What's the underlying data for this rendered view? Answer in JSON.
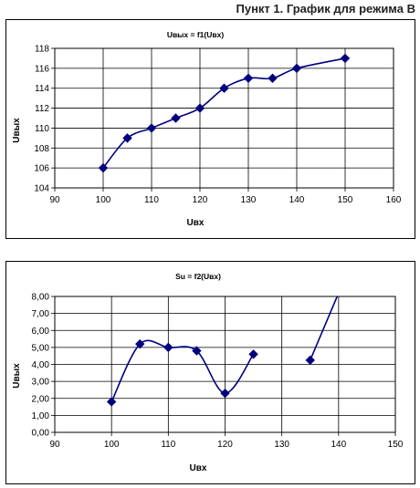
{
  "page_heading": "Пункт 1. График для режима В",
  "colors": {
    "series": "#00007f",
    "grid": "#000000",
    "background": "#ffffff"
  },
  "chart_data": [
    {
      "type": "line",
      "title": "Uвых = f1(Uвх)",
      "xlabel": "Uвх",
      "ylabel": "Uвых",
      "xlim": [
        90,
        160
      ],
      "ylim": [
        104,
        118
      ],
      "xticks": [
        "90",
        "100",
        "110",
        "120",
        "130",
        "140",
        "150",
        "160"
      ],
      "yticks": [
        "104",
        "106",
        "108",
        "110",
        "112",
        "114",
        "116",
        "118"
      ],
      "grid": true,
      "marker": "diamond",
      "series": [
        {
          "x": [
            100,
            105,
            110,
            115,
            120,
            125,
            130,
            135,
            140,
            150
          ],
          "y": [
            106,
            109,
            110,
            111,
            112,
            114,
            115,
            115,
            116,
            117
          ]
        }
      ]
    },
    {
      "type": "line",
      "title": "Su = f2(Uвх)",
      "xlabel": "Uвх",
      "ylabel": "Uвых",
      "xlim": [
        90,
        150
      ],
      "ylim": [
        0,
        8
      ],
      "xticks": [
        "90",
        "100",
        "110",
        "120",
        "130",
        "140",
        "150"
      ],
      "yticks": [
        "0,00",
        "1,00",
        "2,00",
        "3,00",
        "4,00",
        "5,00",
        "6,00",
        "7,00",
        "8,00"
      ],
      "grid": true,
      "marker": "diamond",
      "series": [
        {
          "x": [
            100,
            105,
            110,
            115,
            120,
            125,
            135,
            140
          ],
          "y": [
            1.8,
            5.2,
            5.0,
            4.8,
            2.3,
            4.6,
            4.25,
            8.2
          ]
        }
      ]
    }
  ]
}
